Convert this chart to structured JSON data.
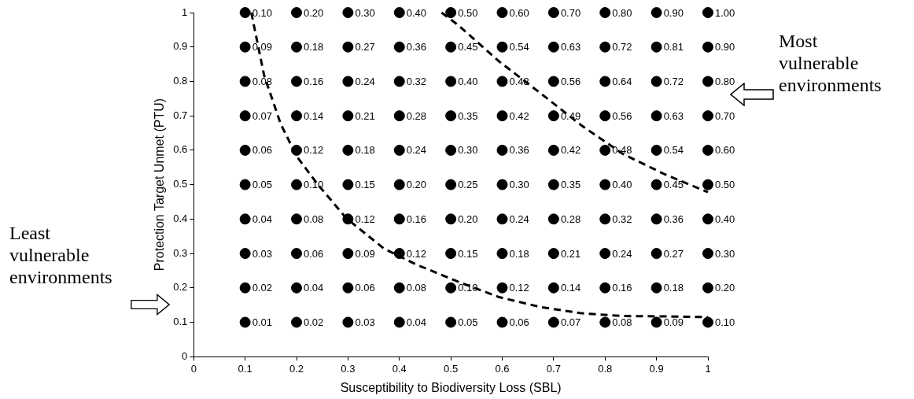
{
  "chart_data": {
    "type": "scatter",
    "xlabel": "Susceptibility to Biodiversity Loss (SBL)",
    "ylabel": "Protection Target Unmet (PTU)",
    "xlim": [
      0,
      1
    ],
    "ylim": [
      0,
      1
    ],
    "xticks": [
      0,
      0.1,
      0.2,
      0.3,
      0.4,
      0.5,
      0.6,
      0.7,
      0.8,
      0.9,
      1
    ],
    "yticks": [
      0,
      0.1,
      0.2,
      0.3,
      0.4,
      0.5,
      0.6,
      0.7,
      0.8,
      0.9,
      1
    ],
    "grid": false,
    "legend": false,
    "marker": "circle",
    "annotations": [
      "Least vulnerable environments",
      "Most vulnerable environments",
      {
        "text": "0.10",
        "x": 0.1,
        "y": 1
      },
      {
        "text": "0.20",
        "x": 0.2,
        "y": 1
      },
      {
        "text": "0.30",
        "x": 0.3,
        "y": 1
      },
      {
        "text": "0.40",
        "x": 0.4,
        "y": 1
      },
      {
        "text": "0.50",
        "x": 0.5,
        "y": 1
      },
      {
        "text": "0.60",
        "x": 0.6,
        "y": 1
      },
      {
        "text": "0.70",
        "x": 0.7,
        "y": 1
      },
      {
        "text": "0.80",
        "x": 0.8,
        "y": 1
      },
      {
        "text": "0.90",
        "x": 0.9,
        "y": 1
      },
      {
        "text": "1.00",
        "x": 1,
        "y": 1
      },
      {
        "text": "0.09",
        "x": 0.1,
        "y": 0.9
      },
      {
        "text": "0.18",
        "x": 0.2,
        "y": 0.9
      },
      {
        "text": "0.27",
        "x": 0.3,
        "y": 0.9
      },
      {
        "text": "0.36",
        "x": 0.4,
        "y": 0.9
      },
      {
        "text": "0.45",
        "x": 0.5,
        "y": 0.9
      },
      {
        "text": "0.54",
        "x": 0.6,
        "y": 0.9
      },
      {
        "text": "0.63",
        "x": 0.7,
        "y": 0.9
      },
      {
        "text": "0.72",
        "x": 0.8,
        "y": 0.9
      },
      {
        "text": "0.81",
        "x": 0.9,
        "y": 0.9
      },
      {
        "text": "0.90",
        "x": 1,
        "y": 0.9
      },
      {
        "text": "0.08",
        "x": 0.1,
        "y": 0.8
      },
      {
        "text": "0.16",
        "x": 0.2,
        "y": 0.8
      },
      {
        "text": "0.24",
        "x": 0.3,
        "y": 0.8
      },
      {
        "text": "0.32",
        "x": 0.4,
        "y": 0.8
      },
      {
        "text": "0.40",
        "x": 0.5,
        "y": 0.8
      },
      {
        "text": "0.48",
        "x": 0.6,
        "y": 0.8
      },
      {
        "text": "0.56",
        "x": 0.7,
        "y": 0.8
      },
      {
        "text": "0.64",
        "x": 0.8,
        "y": 0.8
      },
      {
        "text": "0.72",
        "x": 0.9,
        "y": 0.8
      },
      {
        "text": "0.80",
        "x": 1,
        "y": 0.8
      },
      {
        "text": "0.07",
        "x": 0.1,
        "y": 0.7
      },
      {
        "text": "0.14",
        "x": 0.2,
        "y": 0.7
      },
      {
        "text": "0.21",
        "x": 0.3,
        "y": 0.7
      },
      {
        "text": "0.28",
        "x": 0.4,
        "y": 0.7
      },
      {
        "text": "0.35",
        "x": 0.5,
        "y": 0.7
      },
      {
        "text": "0.42",
        "x": 0.6,
        "y": 0.7
      },
      {
        "text": "0.49",
        "x": 0.7,
        "y": 0.7
      },
      {
        "text": "0.56",
        "x": 0.8,
        "y": 0.7
      },
      {
        "text": "0.63",
        "x": 0.9,
        "y": 0.7
      },
      {
        "text": "0.70",
        "x": 1,
        "y": 0.7
      },
      {
        "text": "0.06",
        "x": 0.1,
        "y": 0.6
      },
      {
        "text": "0.12",
        "x": 0.2,
        "y": 0.6
      },
      {
        "text": "0.18",
        "x": 0.3,
        "y": 0.6
      },
      {
        "text": "0.24",
        "x": 0.4,
        "y": 0.6
      },
      {
        "text": "0.30",
        "x": 0.5,
        "y": 0.6
      },
      {
        "text": "0.36",
        "x": 0.6,
        "y": 0.6
      },
      {
        "text": "0.42",
        "x": 0.7,
        "y": 0.6
      },
      {
        "text": "0.48",
        "x": 0.8,
        "y": 0.6
      },
      {
        "text": "0.54",
        "x": 0.9,
        "y": 0.6
      },
      {
        "text": "0.60",
        "x": 1,
        "y": 0.6
      },
      {
        "text": "0.05",
        "x": 0.1,
        "y": 0.5
      },
      {
        "text": "0.10",
        "x": 0.2,
        "y": 0.5
      },
      {
        "text": "0.15",
        "x": 0.3,
        "y": 0.5
      },
      {
        "text": "0.20",
        "x": 0.4,
        "y": 0.5
      },
      {
        "text": "0.25",
        "x": 0.5,
        "y": 0.5
      },
      {
        "text": "0.30",
        "x": 0.6,
        "y": 0.5
      },
      {
        "text": "0.35",
        "x": 0.7,
        "y": 0.5
      },
      {
        "text": "0.40",
        "x": 0.8,
        "y": 0.5
      },
      {
        "text": "0.45",
        "x": 0.9,
        "y": 0.5
      },
      {
        "text": "0.50",
        "x": 1,
        "y": 0.5
      },
      {
        "text": "0.04",
        "x": 0.1,
        "y": 0.4
      },
      {
        "text": "0.08",
        "x": 0.2,
        "y": 0.4
      },
      {
        "text": "0.12",
        "x": 0.3,
        "y": 0.4
      },
      {
        "text": "0.16",
        "x": 0.4,
        "y": 0.4
      },
      {
        "text": "0.20",
        "x": 0.5,
        "y": 0.4
      },
      {
        "text": "0.24",
        "x": 0.6,
        "y": 0.4
      },
      {
        "text": "0.28",
        "x": 0.7,
        "y": 0.4
      },
      {
        "text": "0.32",
        "x": 0.8,
        "y": 0.4
      },
      {
        "text": "0.36",
        "x": 0.9,
        "y": 0.4
      },
      {
        "text": "0.40",
        "x": 1,
        "y": 0.4
      },
      {
        "text": "0.03",
        "x": 0.1,
        "y": 0.3
      },
      {
        "text": "0.06",
        "x": 0.2,
        "y": 0.3
      },
      {
        "text": "0.09",
        "x": 0.3,
        "y": 0.3
      },
      {
        "text": "0.12",
        "x": 0.4,
        "y": 0.3
      },
      {
        "text": "0.15",
        "x": 0.5,
        "y": 0.3
      },
      {
        "text": "0.18",
        "x": 0.6,
        "y": 0.3
      },
      {
        "text": "0.21",
        "x": 0.7,
        "y": 0.3
      },
      {
        "text": "0.24",
        "x": 0.8,
        "y": 0.3
      },
      {
        "text": "0.27",
        "x": 0.9,
        "y": 0.3
      },
      {
        "text": "0.30",
        "x": 1,
        "y": 0.3
      },
      {
        "text": "0.02",
        "x": 0.1,
        "y": 0.2
      },
      {
        "text": "0.04",
        "x": 0.2,
        "y": 0.2
      },
      {
        "text": "0.06",
        "x": 0.3,
        "y": 0.2
      },
      {
        "text": "0.08",
        "x": 0.4,
        "y": 0.2
      },
      {
        "text": "0.10",
        "x": 0.5,
        "y": 0.2
      },
      {
        "text": "0.12",
        "x": 0.6,
        "y": 0.2
      },
      {
        "text": "0.14",
        "x": 0.7,
        "y": 0.2
      },
      {
        "text": "0.16",
        "x": 0.8,
        "y": 0.2
      },
      {
        "text": "0.18",
        "x": 0.9,
        "y": 0.2
      },
      {
        "text": "0.20",
        "x": 1,
        "y": 0.2
      },
      {
        "text": "0.01",
        "x": 0.1,
        "y": 0.1
      },
      {
        "text": "0.02",
        "x": 0.2,
        "y": 0.1
      },
      {
        "text": "0.03",
        "x": 0.3,
        "y": 0.1
      },
      {
        "text": "0.04",
        "x": 0.4,
        "y": 0.1
      },
      {
        "text": "0.05",
        "x": 0.5,
        "y": 0.1
      },
      {
        "text": "0.06",
        "x": 0.6,
        "y": 0.1
      },
      {
        "text": "0.07",
        "x": 0.7,
        "y": 0.1
      },
      {
        "text": "0.08",
        "x": 0.8,
        "y": 0.1
      },
      {
        "text": "0.09",
        "x": 0.9,
        "y": 0.1
      },
      {
        "text": "0.10",
        "x": 1,
        "y": 0.1
      }
    ],
    "series": [
      {
        "color": "#000000",
        "x": [
          0.1,
          0.2,
          0.3,
          0.4,
          0.5,
          0.6,
          0.7,
          0.8,
          0.9,
          1,
          0.1,
          0.2,
          0.3,
          0.4,
          0.5,
          0.6,
          0.7,
          0.8,
          0.9,
          1,
          0.1,
          0.2,
          0.3,
          0.4,
          0.5,
          0.6,
          0.7,
          0.8,
          0.9,
          1,
          0.1,
          0.2,
          0.3,
          0.4,
          0.5,
          0.6,
          0.7,
          0.8,
          0.9,
          1,
          0.1,
          0.2,
          0.3,
          0.4,
          0.5,
          0.6,
          0.7,
          0.8,
          0.9,
          1,
          0.1,
          0.2,
          0.3,
          0.4,
          0.5,
          0.6,
          0.7,
          0.8,
          0.9,
          1,
          0.1,
          0.2,
          0.3,
          0.4,
          0.5,
          0.6,
          0.7,
          0.8,
          0.9,
          1,
          0.1,
          0.2,
          0.3,
          0.4,
          0.5,
          0.6,
          0.7,
          0.8,
          0.9,
          1,
          0.1,
          0.2,
          0.3,
          0.4,
          0.5,
          0.6,
          0.7,
          0.8,
          0.9,
          1,
          0.1,
          0.2,
          0.3,
          0.4,
          0.5,
          0.6,
          0.7,
          0.8,
          0.9,
          1
        ],
        "values": [
          1,
          1,
          1,
          1,
          1,
          1,
          1,
          1,
          1,
          1,
          0.9,
          0.9,
          0.9,
          0.9,
          0.9,
          0.9,
          0.9,
          0.9,
          0.9,
          0.9,
          0.8,
          0.8,
          0.8,
          0.8,
          0.8,
          0.8,
          0.8,
          0.8,
          0.8,
          0.8,
          0.7,
          0.7,
          0.7,
          0.7,
          0.7,
          0.7,
          0.7,
          0.7,
          0.7,
          0.7,
          0.6,
          0.6,
          0.6,
          0.6,
          0.6,
          0.6,
          0.6,
          0.6,
          0.6,
          0.6,
          0.5,
          0.5,
          0.5,
          0.5,
          0.5,
          0.5,
          0.5,
          0.5,
          0.5,
          0.5,
          0.4,
          0.4,
          0.4,
          0.4,
          0.4,
          0.4,
          0.4,
          0.4,
          0.4,
          0.4,
          0.3,
          0.3,
          0.3,
          0.3,
          0.3,
          0.3,
          0.3,
          0.3,
          0.3,
          0.3,
          0.2,
          0.2,
          0.2,
          0.2,
          0.2,
          0.2,
          0.2,
          0.2,
          0.2,
          0.2,
          0.1,
          0.1,
          0.1,
          0.1,
          0.1,
          0.1,
          0.1,
          0.1,
          0.1,
          0.1
        ]
      },
      {
        "type": "line",
        "color": "#000000",
        "line_style": "dashed",
        "marker": "none",
        "x": [
          0.112,
          0.137,
          0.169,
          0.2,
          0.241,
          0.297,
          0.37,
          0.434,
          0.514,
          0.594,
          0.675,
          0.755,
          0.835,
          0.916,
          1
        ],
        "values": [
          1,
          0.817,
          0.677,
          0.583,
          0.501,
          0.402,
          0.314,
          0.267,
          0.218,
          0.173,
          0.144,
          0.126,
          0.118,
          0.117,
          0.115
        ]
      },
      {
        "type": "line",
        "color": "#000000",
        "line_style": "dashed",
        "marker": "none",
        "x": [
          0.482,
          0.514,
          0.594,
          0.675,
          0.755,
          0.835,
          0.916,
          1
        ],
        "values": [
          1,
          0.964,
          0.858,
          0.765,
          0.671,
          0.589,
          0.53,
          0.478
        ]
      }
    ]
  }
}
